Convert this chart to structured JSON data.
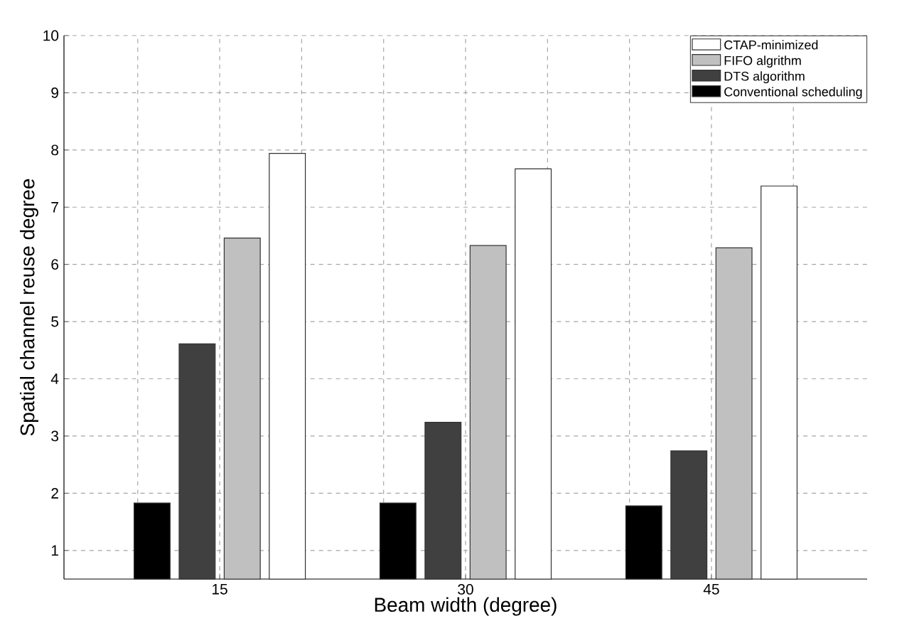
{
  "chart_data": {
    "type": "bar",
    "xlabel": "Beam width (degree)",
    "ylabel": "Spatial channel reuse degree",
    "x": [
      15,
      30,
      45
    ],
    "series": [
      {
        "name": "Conventional scheduling",
        "color": "#000000",
        "values": [
          1.83,
          1.83,
          1.78
        ]
      },
      {
        "name": "DTS algorithm",
        "color": "#404040",
        "values": [
          4.61,
          3.24,
          2.74
        ]
      },
      {
        "name": "FIFO algrithm",
        "color": "#c0c0c0",
        "values": [
          6.46,
          6.33,
          6.29
        ]
      },
      {
        "name": "CTAP-minimized",
        "color": "#ffffff",
        "values": [
          7.94,
          7.67,
          7.37
        ]
      }
    ],
    "xlim": [
      5.5,
      54.5
    ],
    "xticks": [
      {
        "value": 10,
        "label": null
      },
      15,
      {
        "value": 20,
        "label": null
      },
      {
        "value": 25,
        "label": null
      },
      30,
      {
        "value": 35,
        "label": null
      },
      {
        "value": 40,
        "label": null
      },
      45,
      {
        "value": 50,
        "label": null
      }
    ],
    "ylim": [
      0.5,
      10
    ],
    "yticks": [
      1,
      2,
      3,
      4,
      5,
      6,
      7,
      8,
      9,
      10
    ],
    "grid": true,
    "legend": "top right"
  }
}
